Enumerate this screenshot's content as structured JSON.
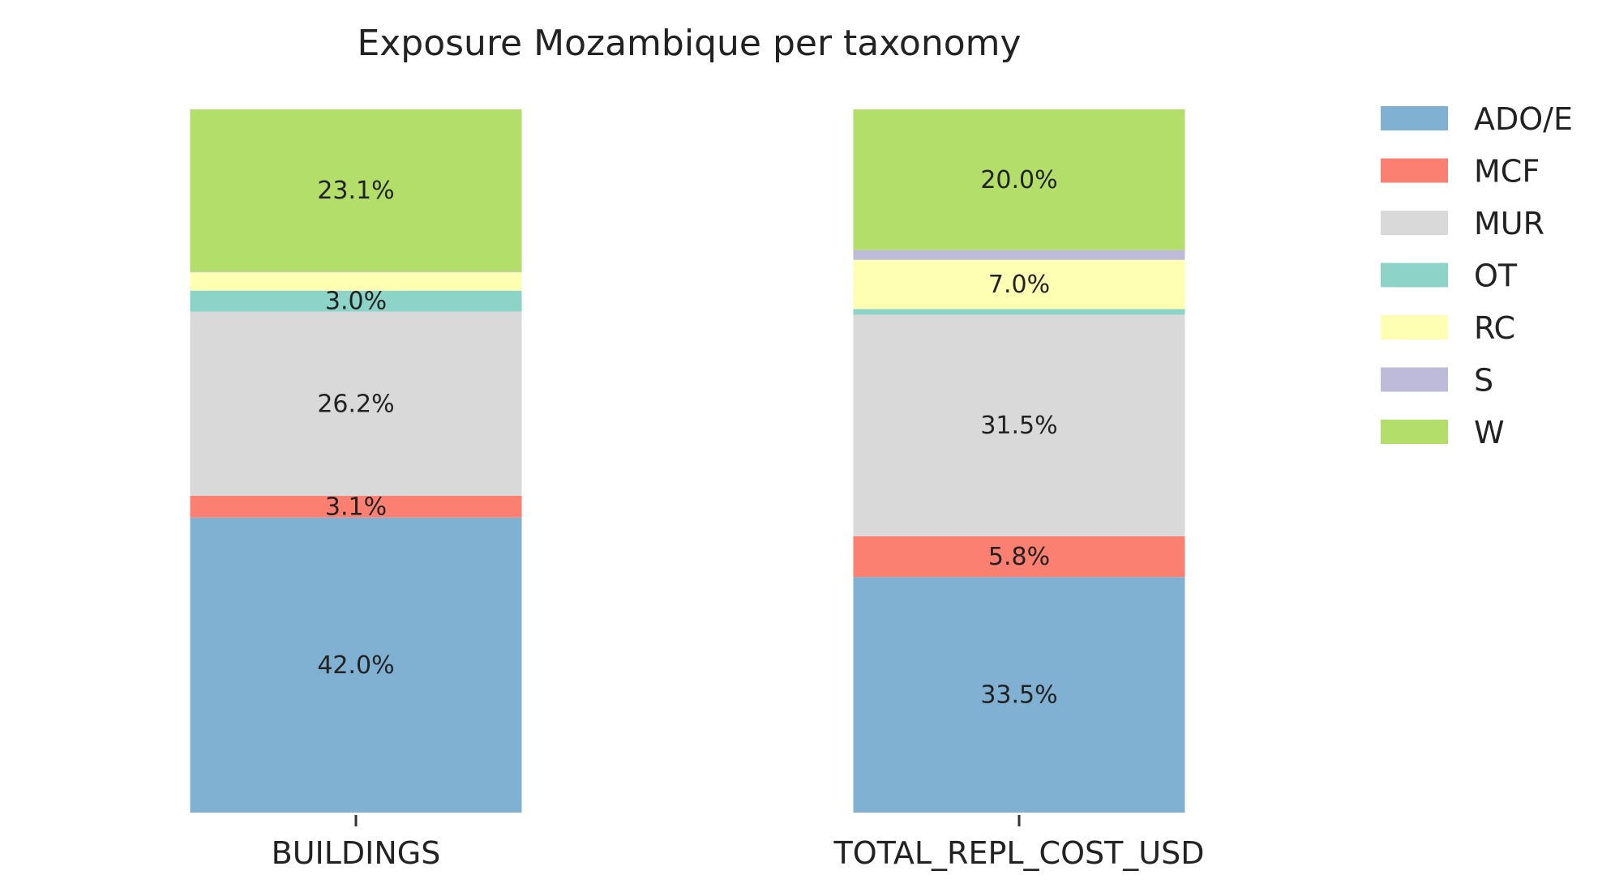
{
  "chart_data": {
    "type": "bar",
    "stacked": true,
    "normalized": true,
    "title": "Exposure Mozambique per taxonomy",
    "xlabel": "",
    "ylabel": "",
    "ylim": [
      0,
      100
    ],
    "grid": false,
    "legend_position": "top-right",
    "categories": [
      "BUILDINGS",
      "TOTAL_REPL_COST_USD"
    ],
    "series": [
      {
        "name": "ADO/E",
        "color": "#80b1d3",
        "values": [
          42.0,
          33.5
        ],
        "labels": [
          "42.0%",
          "33.5%"
        ]
      },
      {
        "name": "MCF",
        "color": "#fb8072",
        "values": [
          3.1,
          5.8
        ],
        "labels": [
          "3.1%",
          "5.8%"
        ]
      },
      {
        "name": "MUR",
        "color": "#d9d9d9",
        "values": [
          26.2,
          31.5
        ],
        "labels": [
          "26.2%",
          "31.5%"
        ]
      },
      {
        "name": "OT",
        "color": "#8dd3c7",
        "values": [
          3.0,
          0.8
        ],
        "labels": [
          "3.0%",
          ""
        ]
      },
      {
        "name": "RC",
        "color": "#ffffb3",
        "values": [
          2.6,
          7.0
        ],
        "labels": [
          "",
          "7.0%"
        ]
      },
      {
        "name": "S",
        "color": "#bebada",
        "values": [
          0.1,
          1.4
        ],
        "labels": [
          "",
          ""
        ]
      },
      {
        "name": "W",
        "color": "#b3de69",
        "values": [
          23.1,
          20.0
        ],
        "labels": [
          "23.1%",
          "20.0%"
        ]
      }
    ]
  }
}
